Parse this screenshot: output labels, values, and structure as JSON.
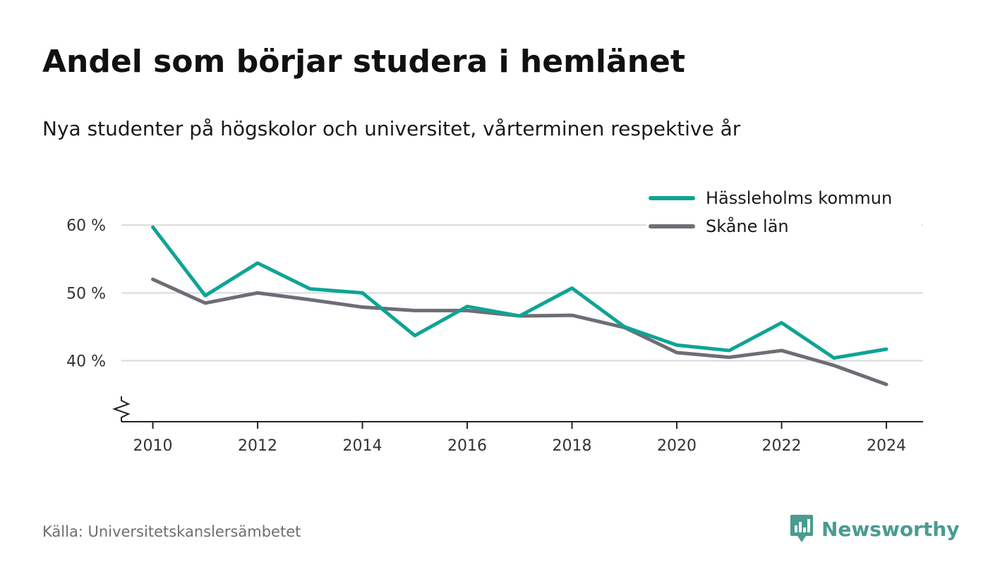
{
  "title": "Andel som börjar studera i hemlänet",
  "subtitle": "Nya studenter på högskolor och universitet, vårterminen respektive år",
  "source": "Källa: Universitetskanslersämbetet",
  "brand": {
    "name": "Newsworthy",
    "color": "#4a9b91",
    "icon": "newsworthy-logo-icon"
  },
  "chart_data": {
    "type": "line",
    "x": [
      2010,
      2011,
      2012,
      2013,
      2014,
      2015,
      2016,
      2017,
      2018,
      2019,
      2020,
      2021,
      2022,
      2023,
      2024
    ],
    "series": [
      {
        "name": "Hässleholms kommun",
        "color": "#0ea495",
        "values": [
          59.7,
          49.6,
          54.4,
          50.6,
          50.0,
          43.7,
          48.0,
          46.6,
          50.7,
          45.0,
          42.3,
          41.5,
          45.6,
          40.4,
          41.7
        ]
      },
      {
        "name": "Skåne län",
        "color": "#6e6d75",
        "values": [
          52.0,
          48.5,
          50.0,
          49.0,
          47.9,
          47.4,
          47.4,
          46.6,
          46.7,
          44.9,
          41.2,
          40.5,
          41.5,
          39.3,
          36.5
        ]
      }
    ],
    "xticks": [
      2010,
      2012,
      2014,
      2016,
      2018,
      2020,
      2022,
      2024
    ],
    "xtick_labels": [
      "2010",
      "2012",
      "2014",
      "2016",
      "2018",
      "2020",
      "2022",
      "2024"
    ],
    "yticks": [
      40,
      50,
      60
    ],
    "ytick_labels": [
      "40 %",
      "50 %",
      "60 %"
    ],
    "xlim": [
      2009.4,
      2024.7
    ],
    "ylim": [
      31,
      62
    ],
    "grid": "horizontal",
    "legend_position": "top-right",
    "axis_break": true
  }
}
